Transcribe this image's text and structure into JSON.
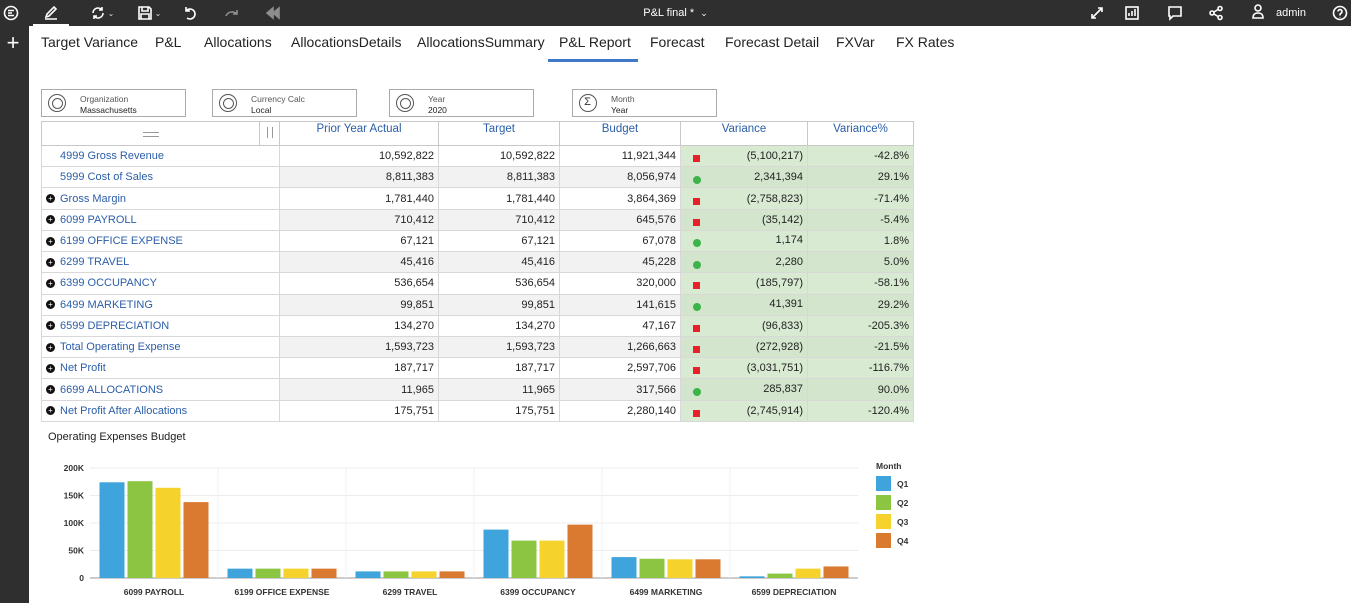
{
  "app": {
    "title": "P&L final *",
    "user": "admin",
    "colors": {
      "topbar": "#2f2f2f",
      "accent": "#3f78c8",
      "link": "#2b5ea8",
      "variance_bg": "#d9ead3",
      "bad": "#e8202a",
      "good": "#3cb44a"
    },
    "toolbar_icons": [
      "collapse-menu-icon",
      "edit-icon",
      "refresh-icon",
      "save-icon",
      "undo-icon",
      "redo-icon",
      "rewind-icon",
      "expand-icon",
      "presentation-icon",
      "comment-icon",
      "share-icon",
      "user-icon",
      "help-icon"
    ]
  },
  "tabs": [
    "Target Variance",
    "P&L",
    "Allocations",
    "AllocationsDetails",
    "AllocationsSummary",
    "P&L Report",
    "Forecast",
    "Forecast Detail",
    "FXVar",
    "FX Rates"
  ],
  "active_tab": "P&L Report",
  "filters": [
    {
      "label": "Organization",
      "value": "Massachusetts",
      "icon": "hierarchy-icon"
    },
    {
      "label": "Currency Calc",
      "value": "Local",
      "icon": "hierarchy-icon"
    },
    {
      "label": "Year",
      "value": "2020",
      "icon": "hierarchy-icon"
    },
    {
      "label": "Month",
      "value": "Year",
      "icon": "sum-icon",
      "symbol": "Σ"
    }
  ],
  "table": {
    "columns": [
      "Prior Year Actual",
      "Target",
      "Budget",
      "Variance",
      "Variance%"
    ],
    "rows": [
      {
        "label": "4999 Gross Revenue",
        "expandable": false,
        "pya": "10,592,822",
        "target": "10,592,822",
        "budget": "11,921,344",
        "status": "bad",
        "variance": "(5,100,217)",
        "pct": "-42.8%"
      },
      {
        "label": "5999 Cost of Sales",
        "expandable": false,
        "pya": "8,811,383",
        "target": "8,811,383",
        "budget": "8,056,974",
        "status": "good",
        "variance": "2,341,394",
        "pct": "29.1%"
      },
      {
        "label": "Gross Margin",
        "expandable": true,
        "pya": "1,781,440",
        "target": "1,781,440",
        "budget": "3,864,369",
        "status": "bad",
        "variance": "(2,758,823)",
        "pct": "-71.4%"
      },
      {
        "label": "6099 PAYROLL",
        "expandable": true,
        "pya": "710,412",
        "target": "710,412",
        "budget": "645,576",
        "status": "bad",
        "variance": "(35,142)",
        "pct": "-5.4%"
      },
      {
        "label": "6199 OFFICE EXPENSE",
        "expandable": true,
        "pya": "67,121",
        "target": "67,121",
        "budget": "67,078",
        "status": "good",
        "variance": "1,174",
        "pct": "1.8%"
      },
      {
        "label": "6299 TRAVEL",
        "expandable": true,
        "pya": "45,416",
        "target": "45,416",
        "budget": "45,228",
        "status": "good",
        "variance": "2,280",
        "pct": "5.0%"
      },
      {
        "label": "6399 OCCUPANCY",
        "expandable": true,
        "pya": "536,654",
        "target": "536,654",
        "budget": "320,000",
        "status": "bad",
        "variance": "(185,797)",
        "pct": "-58.1%"
      },
      {
        "label": "6499 MARKETING",
        "expandable": true,
        "pya": "99,851",
        "target": "99,851",
        "budget": "141,615",
        "status": "good",
        "variance": "41,391",
        "pct": "29.2%"
      },
      {
        "label": "6599 DEPRECIATION",
        "expandable": true,
        "pya": "134,270",
        "target": "134,270",
        "budget": "47,167",
        "status": "bad",
        "variance": "(96,833)",
        "pct": "-205.3%"
      },
      {
        "label": "Total Operating Expense",
        "expandable": true,
        "pya": "1,593,723",
        "target": "1,593,723",
        "budget": "1,266,663",
        "status": "bad",
        "variance": "(272,928)",
        "pct": "-21.5%"
      },
      {
        "label": "Net Profit",
        "expandable": true,
        "pya": "187,717",
        "target": "187,717",
        "budget": "2,597,706",
        "status": "bad",
        "variance": "(3,031,751)",
        "pct": "-116.7%"
      },
      {
        "label": "6699 ALLOCATIONS",
        "expandable": true,
        "pya": "11,965",
        "target": "11,965",
        "budget": "317,566",
        "status": "good",
        "variance": "285,837",
        "pct": "90.0%"
      },
      {
        "label": "Net Profit After Allocations",
        "expandable": true,
        "pya": "175,751",
        "target": "175,751",
        "budget": "2,280,140",
        "status": "bad",
        "variance": "(2,745,914)",
        "pct": "-120.4%"
      }
    ]
  },
  "chart_data": {
    "type": "bar",
    "title": "Operating Expenses Budget",
    "categories": [
      "6099 PAYROLL",
      "6199 OFFICE EXPENSE",
      "6299 TRAVEL",
      "6399 OCCUPANCY",
      "6499 MARKETING",
      "6599 DEPRECIATION"
    ],
    "series": [
      {
        "name": "Q1",
        "color": "#3fa4dc",
        "values": [
          174000,
          17000,
          12000,
          88000,
          38000,
          3000
        ]
      },
      {
        "name": "Q2",
        "color": "#8bc541",
        "values": [
          176000,
          17000,
          12000,
          68000,
          35000,
          8000
        ]
      },
      {
        "name": "Q3",
        "color": "#f5d22c",
        "values": [
          164000,
          17000,
          12000,
          68000,
          34000,
          17000
        ]
      },
      {
        "name": "Q4",
        "color": "#d97a30",
        "values": [
          138000,
          17000,
          12000,
          97000,
          34000,
          21000
        ]
      }
    ],
    "ylim": [
      0,
      200000
    ],
    "yticks": [
      "0",
      "50K",
      "100K",
      "150K",
      "200K"
    ],
    "ytick_values": [
      0,
      50000,
      100000,
      150000,
      200000
    ],
    "legend_title": "Month",
    "legend_position": "right",
    "grid": true
  }
}
